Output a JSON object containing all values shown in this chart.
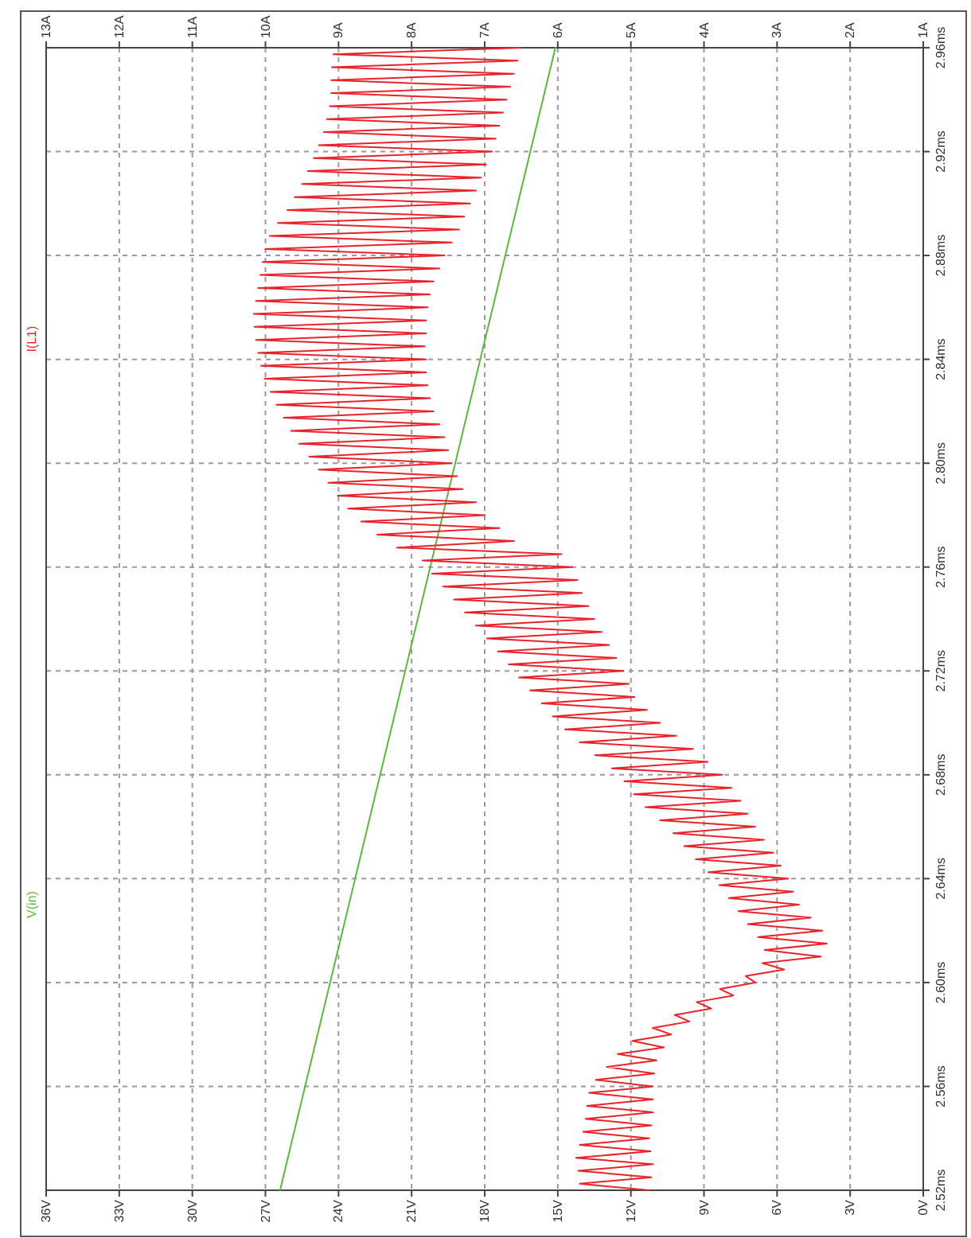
{
  "chart_data": {
    "type": "line",
    "ylim": [
      2.52,
      2.96
    ],
    "yticks": [
      {
        "value": 2.52,
        "label": "2.52ms"
      },
      {
        "value": 2.56,
        "label": "2.56ms"
      },
      {
        "value": 2.6,
        "label": "2.60ms"
      },
      {
        "value": 2.64,
        "label": "2.64ms"
      },
      {
        "value": 2.68,
        "label": "2.68ms"
      },
      {
        "value": 2.72,
        "label": "2.72ms"
      },
      {
        "value": 2.76,
        "label": "2.76ms"
      },
      {
        "value": 2.8,
        "label": "2.80ms"
      },
      {
        "value": 2.84,
        "label": "2.84ms"
      },
      {
        "value": 2.88,
        "label": "2.88ms"
      },
      {
        "value": 2.92,
        "label": "2.92ms"
      },
      {
        "value": 2.96,
        "label": "2.96ms"
      }
    ],
    "xlim": [
      36,
      0
    ],
    "xticks": [
      {
        "value": 36,
        "label": "36V"
      },
      {
        "value": 33,
        "label": "33V"
      },
      {
        "value": 30,
        "label": "30V"
      },
      {
        "value": 27,
        "label": "27V"
      },
      {
        "value": 24,
        "label": "24V"
      },
      {
        "value": 21,
        "label": "21V"
      },
      {
        "value": 18,
        "label": "18V"
      },
      {
        "value": 15,
        "label": "15V"
      },
      {
        "value": 12,
        "label": "12V"
      },
      {
        "value": 9,
        "label": "9V"
      },
      {
        "value": 6,
        "label": "6V"
      },
      {
        "value": 3,
        "label": "3V"
      },
      {
        "value": 0,
        "label": "0V"
      }
    ],
    "x2lim": [
      13,
      1
    ],
    "x2ticks": [
      {
        "value": 13,
        "label": "13A"
      },
      {
        "value": 12,
        "label": "12A"
      },
      {
        "value": 11,
        "label": "11A"
      },
      {
        "value": 10,
        "label": "10A"
      },
      {
        "value": 9,
        "label": "9A"
      },
      {
        "value": 8,
        "label": "8A"
      },
      {
        "value": 7,
        "label": "7A"
      },
      {
        "value": 6,
        "label": "6A"
      },
      {
        "value": 5,
        "label": "5A"
      },
      {
        "value": 4,
        "label": "4A"
      },
      {
        "value": 3,
        "label": "3A"
      },
      {
        "value": 2,
        "label": "2A"
      },
      {
        "value": 1,
        "label": "1A"
      }
    ],
    "grid": true,
    "line_style": "solid",
    "marker": "none",
    "series": [
      {
        "name": "V(in)",
        "color": "#5cb83c",
        "x": [
          26.4,
          20.75,
          15.1
        ],
        "values": [
          2.52,
          2.74,
          2.96
        ]
      },
      {
        "name": "I(L1)",
        "color": "#e8232b",
        "axis": "x2",
        "values": [
          2.52,
          2.5225,
          2.525,
          2.5275,
          2.53,
          2.5325,
          2.535,
          2.5375,
          2.54,
          2.5425,
          2.545,
          2.5475,
          2.55,
          2.5525,
          2.555,
          2.5575,
          2.56,
          2.5625,
          2.565,
          2.5675,
          2.57,
          2.5725,
          2.575,
          2.5775,
          2.58,
          2.5825,
          2.585,
          2.5875,
          2.59,
          2.5925,
          2.595,
          2.5975,
          2.6,
          2.6025,
          2.605,
          2.6075,
          2.61,
          2.6125,
          2.615,
          2.6175,
          2.62,
          2.6225,
          2.625,
          2.6275,
          2.63,
          2.6325,
          2.635,
          2.6375,
          2.64,
          2.6425,
          2.645,
          2.6475,
          2.65,
          2.6525,
          2.655,
          2.6575,
          2.66,
          2.6625,
          2.665,
          2.6675,
          2.67,
          2.6725,
          2.675,
          2.6775,
          2.68,
          2.6825,
          2.685,
          2.6875,
          2.69,
          2.6925,
          2.695,
          2.6975,
          2.7,
          2.7025,
          2.705,
          2.7075,
          2.71,
          2.7125,
          2.715,
          2.7175,
          2.72,
          2.7225,
          2.725,
          2.7275,
          2.73,
          2.7325,
          2.735,
          2.7375,
          2.74,
          2.7425,
          2.745,
          2.7475,
          2.75,
          2.7525,
          2.755,
          2.7575,
          2.76,
          2.7625,
          2.765,
          2.7675,
          2.77,
          2.7725,
          2.775,
          2.7775,
          2.78,
          2.7825,
          2.785,
          2.7875,
          2.79,
          2.7925,
          2.795,
          2.7975,
          2.8,
          2.8025,
          2.805,
          2.8075,
          2.81,
          2.8125,
          2.815,
          2.8175,
          2.82,
          2.8225,
          2.825,
          2.8275,
          2.83,
          2.8325,
          2.835,
          2.8375,
          2.84,
          2.8425,
          2.845,
          2.8475,
          2.85,
          2.8525,
          2.855,
          2.8575,
          2.86,
          2.8625,
          2.865,
          2.8675,
          2.87,
          2.8725,
          2.875,
          2.8775,
          2.88,
          2.8825,
          2.885,
          2.8875,
          2.89,
          2.8925,
          2.895,
          2.8975,
          2.9,
          2.9025,
          2.905,
          2.9075,
          2.91,
          2.9125,
          2.915,
          2.9175,
          2.92,
          2.9225,
          2.925,
          2.9275,
          2.93,
          2.9325,
          2.935,
          2.9375,
          2.94,
          2.9425,
          2.945,
          2.9475,
          2.95,
          2.9525,
          2.955,
          2.9575,
          2.96
        ],
        "x": [
          4.75,
          5.7,
          4.72,
          5.72,
          4.7,
          5.75,
          4.73,
          5.7,
          4.75,
          5.65,
          4.72,
          5.62,
          4.7,
          5.6,
          4.7,
          5.57,
          4.7,
          5.48,
          4.68,
          5.33,
          4.65,
          5.18,
          4.55,
          4.98,
          4.45,
          4.7,
          4.2,
          4.4,
          3.9,
          4.1,
          3.6,
          3.78,
          3.3,
          3.43,
          2.9,
          3.2,
          2.4,
          3.17,
          2.32,
          3.26,
          2.38,
          3.4,
          2.54,
          3.53,
          2.7,
          3.66,
          2.78,
          3.79,
          2.85,
          3.94,
          2.95,
          4.11,
          3.05,
          4.27,
          3.18,
          4.42,
          3.3,
          4.6,
          3.4,
          4.8,
          3.5,
          4.96,
          3.62,
          5.09,
          3.75,
          5.26,
          3.95,
          5.49,
          4.15,
          5.7,
          4.38,
          5.9,
          4.6,
          6.07,
          4.78,
          6.22,
          4.95,
          6.38,
          5.03,
          6.53,
          5.1,
          6.67,
          5.2,
          6.82,
          5.3,
          6.97,
          5.4,
          7.12,
          5.5,
          7.27,
          5.58,
          7.42,
          5.67,
          7.57,
          5.73,
          7.72,
          5.8,
          7.85,
          5.95,
          8.2,
          6.6,
          8.47,
          6.8,
          8.69,
          7.0,
          8.87,
          7.12,
          9.01,
          7.3,
          9.14,
          7.38,
          9.27,
          7.45,
          9.4,
          7.5,
          9.54,
          7.55,
          9.65,
          7.62,
          9.75,
          7.7,
          9.85,
          7.75,
          9.93,
          7.78,
          10.01,
          7.8,
          10.06,
          7.8,
          10.1,
          7.82,
          10.13,
          7.8,
          10.15,
          7.8,
          10.16,
          7.78,
          10.13,
          7.75,
          10.1,
          7.7,
          10.07,
          7.62,
          10.04,
          7.55,
          10.0,
          7.45,
          9.94,
          7.35,
          9.83,
          7.28,
          9.7,
          7.2,
          9.6,
          7.12,
          9.5,
          7.05,
          9.42,
          6.98,
          9.34,
          6.9,
          9.27,
          6.85,
          9.2,
          6.8,
          9.16,
          6.75,
          9.12,
          6.7,
          9.1,
          6.65,
          9.1,
          6.6,
          9.09,
          6.55,
          9.07,
          6.5
        ]
      }
    ]
  }
}
